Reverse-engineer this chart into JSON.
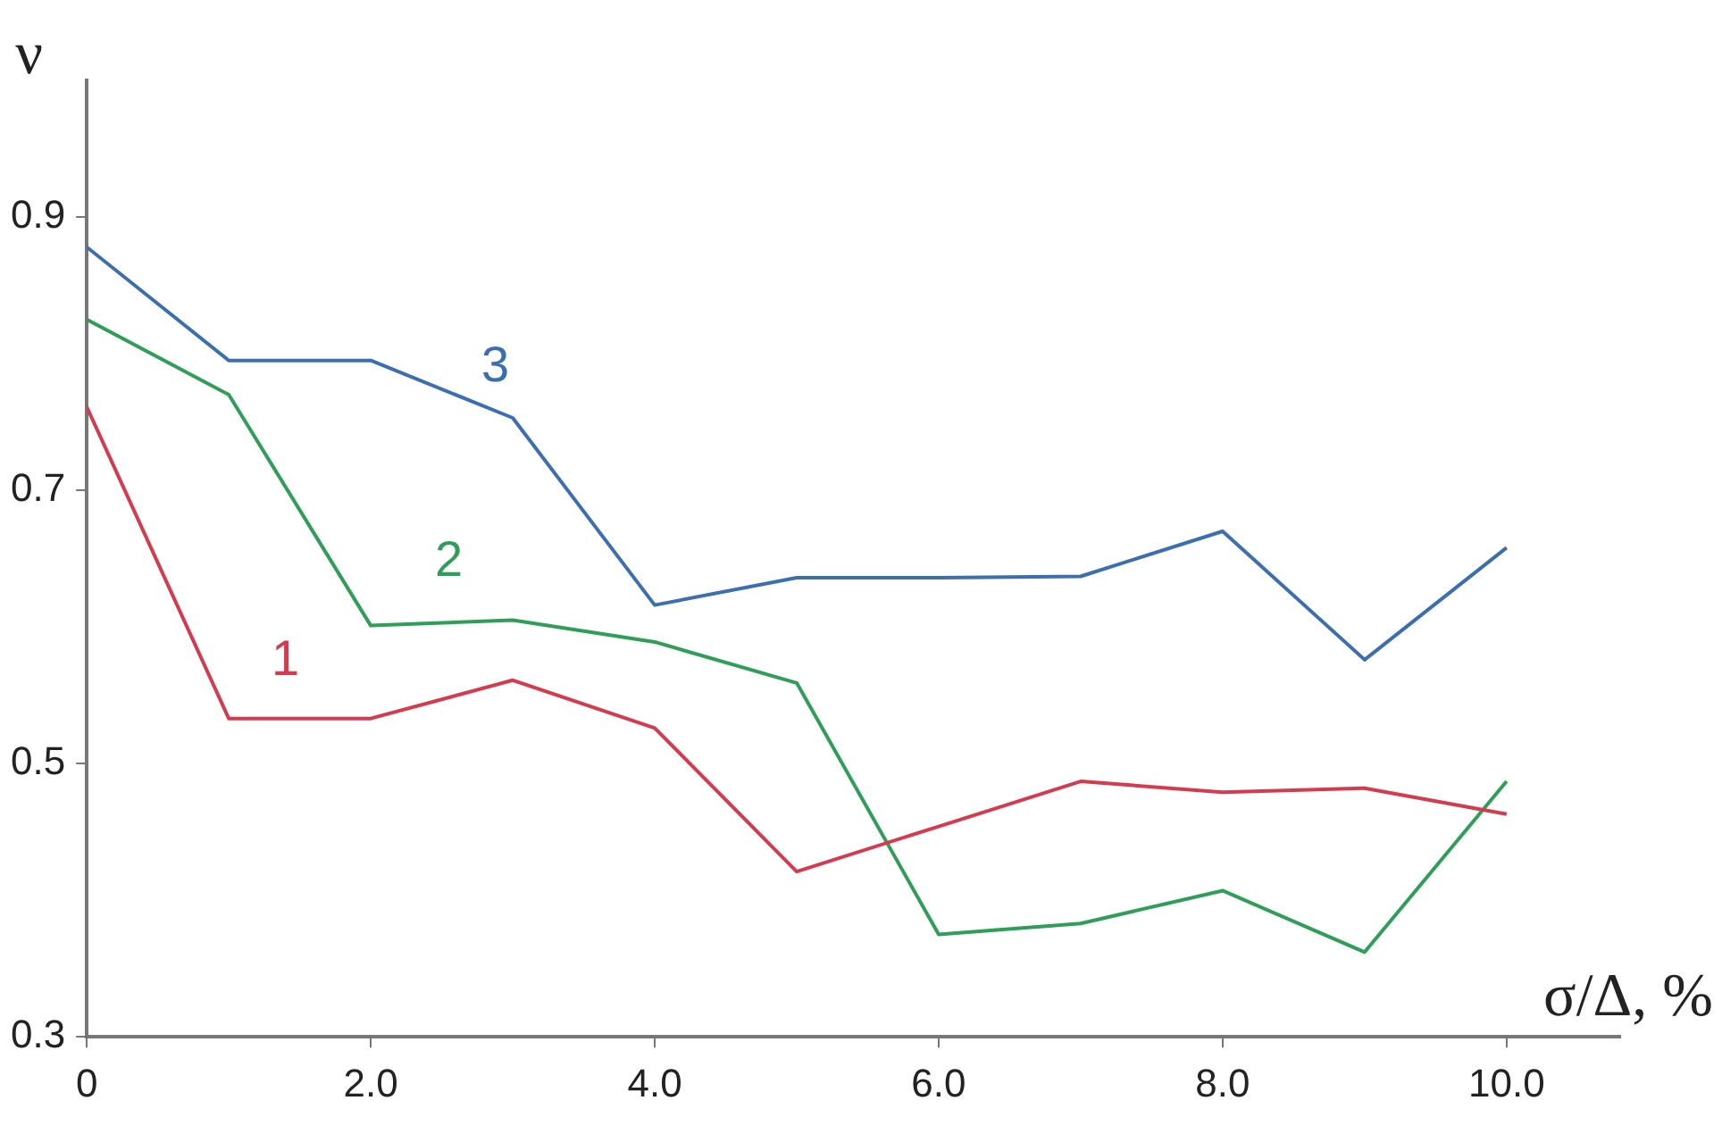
{
  "chart_data": {
    "type": "line",
    "xlabel": "σ/Δ, %",
    "ylabel": "ν",
    "x": [
      0,
      1,
      2,
      3,
      4,
      5,
      6,
      7,
      8,
      9,
      10
    ],
    "xlim": [
      0,
      10.8
    ],
    "ylim": [
      0.3,
      1.0
    ],
    "xticks": [
      0,
      {
        "value": 2,
        "label": "2.0"
      },
      {
        "value": 4,
        "label": "4.0"
      },
      {
        "value": 6,
        "label": "6.0"
      },
      {
        "value": 8,
        "label": "8.0"
      },
      {
        "value": 10,
        "label": "10.0"
      }
    ],
    "yticks": [
      0.3,
      0.5,
      0.7,
      0.9
    ],
    "grid": false,
    "legend": false,
    "marker": "none",
    "line_style": "solid",
    "series": [
      {
        "name": "1",
        "color": "#d63a4f",
        "values": [
          0.761,
          0.533,
          0.533,
          0.561,
          0.526,
          0.421,
          0.454,
          0.487,
          0.479,
          0.482,
          0.463
        ]
      },
      {
        "name": "2",
        "color": "#2f9e58",
        "values": [
          0.825,
          0.77,
          0.601,
          0.605,
          0.589,
          0.559,
          0.375,
          0.383,
          0.407,
          0.362,
          0.487
        ]
      },
      {
        "name": "3",
        "color": "#3b6fb0",
        "values": [
          0.878,
          0.795,
          0.795,
          0.753,
          0.616,
          0.636,
          0.636,
          0.637,
          0.67,
          0.576,
          0.658
        ]
      }
    ]
  }
}
